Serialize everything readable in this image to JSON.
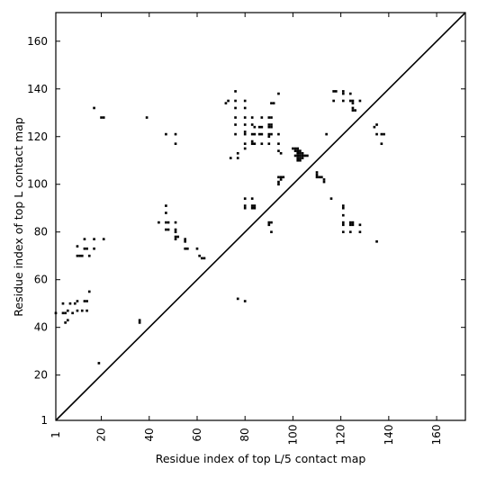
{
  "chart_data": {
    "type": "scatter",
    "title": "",
    "xlabel": "Residue index of top L/5 contact map",
    "ylabel": "Residue index of top L contact map",
    "xlim": [
      1,
      172
    ],
    "ylim": [
      1,
      172
    ],
    "xticks": [
      1,
      20,
      40,
      60,
      80,
      100,
      120,
      140,
      160
    ],
    "yticks": [
      1,
      20,
      40,
      60,
      80,
      100,
      120,
      140,
      160
    ],
    "grid": false,
    "legend": "none",
    "diagonal": {
      "from": [
        1,
        1
      ],
      "to": [
        172,
        172
      ]
    },
    "marker_color": "#000000",
    "points": [
      [
        1,
        46
      ],
      [
        4,
        46
      ],
      [
        4,
        50
      ],
      [
        5,
        42
      ],
      [
        5,
        46
      ],
      [
        6,
        43
      ],
      [
        6,
        47
      ],
      [
        7,
        50
      ],
      [
        8,
        46
      ],
      [
        9,
        50
      ],
      [
        10,
        51
      ],
      [
        10,
        47
      ],
      [
        12,
        47
      ],
      [
        13,
        51
      ],
      [
        14,
        51
      ],
      [
        15,
        55
      ],
      [
        14,
        47
      ],
      [
        10,
        70
      ],
      [
        11,
        70
      ],
      [
        12,
        70
      ],
      [
        15,
        70
      ],
      [
        10,
        74
      ],
      [
        13,
        73
      ],
      [
        13,
        77
      ],
      [
        14,
        73
      ],
      [
        17,
        73
      ],
      [
        17,
        77
      ],
      [
        21,
        77
      ],
      [
        17,
        132
      ],
      [
        20,
        128
      ],
      [
        21,
        128
      ],
      [
        39,
        128
      ],
      [
        19,
        25
      ],
      [
        36,
        42
      ],
      [
        36,
        43
      ],
      [
        47,
        121
      ],
      [
        51,
        121
      ],
      [
        51,
        117
      ],
      [
        44,
        84
      ],
      [
        47,
        84
      ],
      [
        48,
        84
      ],
      [
        51,
        84
      ],
      [
        47,
        81
      ],
      [
        48,
        81
      ],
      [
        51,
        81
      ],
      [
        47,
        88
      ],
      [
        47,
        91
      ],
      [
        51,
        80
      ],
      [
        51,
        78
      ],
      [
        52,
        78
      ],
      [
        51,
        77
      ],
      [
        55,
        77
      ],
      [
        55,
        76
      ],
      [
        55,
        73
      ],
      [
        56,
        73
      ],
      [
        60,
        73
      ],
      [
        61,
        70
      ],
      [
        62,
        69
      ],
      [
        63,
        69
      ],
      [
        72,
        134
      ],
      [
        73,
        135
      ],
      [
        76,
        135
      ],
      [
        76,
        139
      ],
      [
        76,
        132
      ],
      [
        80,
        135
      ],
      [
        80,
        132
      ],
      [
        76,
        128
      ],
      [
        80,
        128
      ],
      [
        83,
        128
      ],
      [
        87,
        128
      ],
      [
        90,
        128
      ],
      [
        91,
        128
      ],
      [
        76,
        125
      ],
      [
        80,
        125
      ],
      [
        83,
        125
      ],
      [
        84,
        124
      ],
      [
        86,
        124
      ],
      [
        87,
        124
      ],
      [
        90,
        125
      ],
      [
        91,
        125
      ],
      [
        90,
        124
      ],
      [
        91,
        124
      ],
      [
        76,
        121
      ],
      [
        80,
        121
      ],
      [
        80,
        122
      ],
      [
        83,
        121
      ],
      [
        84,
        121
      ],
      [
        86,
        121
      ],
      [
        87,
        121
      ],
      [
        90,
        121
      ],
      [
        91,
        121
      ],
      [
        90,
        120
      ],
      [
        94,
        121
      ],
      [
        80,
        117
      ],
      [
        83,
        117
      ],
      [
        84,
        117
      ],
      [
        83,
        118
      ],
      [
        87,
        117
      ],
      [
        90,
        117
      ],
      [
        94,
        117
      ],
      [
        94,
        114
      ],
      [
        95,
        113
      ],
      [
        80,
        115
      ],
      [
        77,
        113
      ],
      [
        77,
        111
      ],
      [
        74,
        111
      ],
      [
        91,
        134
      ],
      [
        92,
        134
      ],
      [
        94,
        138
      ],
      [
        80,
        94
      ],
      [
        83,
        94
      ],
      [
        80,
        91
      ],
      [
        80,
        90
      ],
      [
        83,
        91
      ],
      [
        84,
        91
      ],
      [
        84,
        90
      ],
      [
        83,
        90
      ],
      [
        90,
        84
      ],
      [
        91,
        84
      ],
      [
        90,
        83
      ],
      [
        91,
        80
      ],
      [
        77,
        52
      ],
      [
        80,
        51
      ],
      [
        100,
        115
      ],
      [
        101,
        115
      ],
      [
        101,
        114
      ],
      [
        102,
        114
      ],
      [
        102,
        113
      ],
      [
        103,
        113
      ],
      [
        101,
        112
      ],
      [
        102,
        112
      ],
      [
        103,
        112
      ],
      [
        104,
        112
      ],
      [
        102,
        111
      ],
      [
        103,
        111
      ],
      [
        104,
        111
      ],
      [
        102,
        110
      ],
      [
        103,
        110
      ],
      [
        105,
        112
      ],
      [
        106,
        112
      ],
      [
        104,
        113
      ],
      [
        103,
        114
      ],
      [
        102,
        115
      ],
      [
        94,
        103
      ],
      [
        95,
        103
      ],
      [
        96,
        103
      ],
      [
        95,
        102
      ],
      [
        94,
        101
      ],
      [
        94,
        100
      ],
      [
        110,
        105
      ],
      [
        110,
        104
      ],
      [
        110,
        103
      ],
      [
        111,
        103
      ],
      [
        112,
        103
      ],
      [
        113,
        102
      ],
      [
        113,
        101
      ],
      [
        114,
        121
      ],
      [
        116,
        94
      ],
      [
        117,
        139
      ],
      [
        118,
        139
      ],
      [
        121,
        139
      ],
      [
        121,
        138
      ],
      [
        124,
        138
      ],
      [
        125,
        135
      ],
      [
        124,
        135
      ],
      [
        125,
        134
      ],
      [
        125,
        132
      ],
      [
        126,
        131
      ],
      [
        125,
        131
      ],
      [
        128,
        135
      ],
      [
        117,
        135
      ],
      [
        121,
        135
      ],
      [
        121,
        91
      ],
      [
        121,
        90
      ],
      [
        121,
        87
      ],
      [
        121,
        84
      ],
      [
        121,
        83
      ],
      [
        121,
        80
      ],
      [
        124,
        84
      ],
      [
        124,
        83
      ],
      [
        125,
        84
      ],
      [
        125,
        83
      ],
      [
        124,
        80
      ],
      [
        128,
        83
      ],
      [
        128,
        80
      ],
      [
        134,
        124
      ],
      [
        135,
        125
      ],
      [
        135,
        121
      ],
      [
        137,
        121
      ],
      [
        138,
        121
      ],
      [
        137,
        117
      ],
      [
        135,
        76
      ]
    ]
  }
}
